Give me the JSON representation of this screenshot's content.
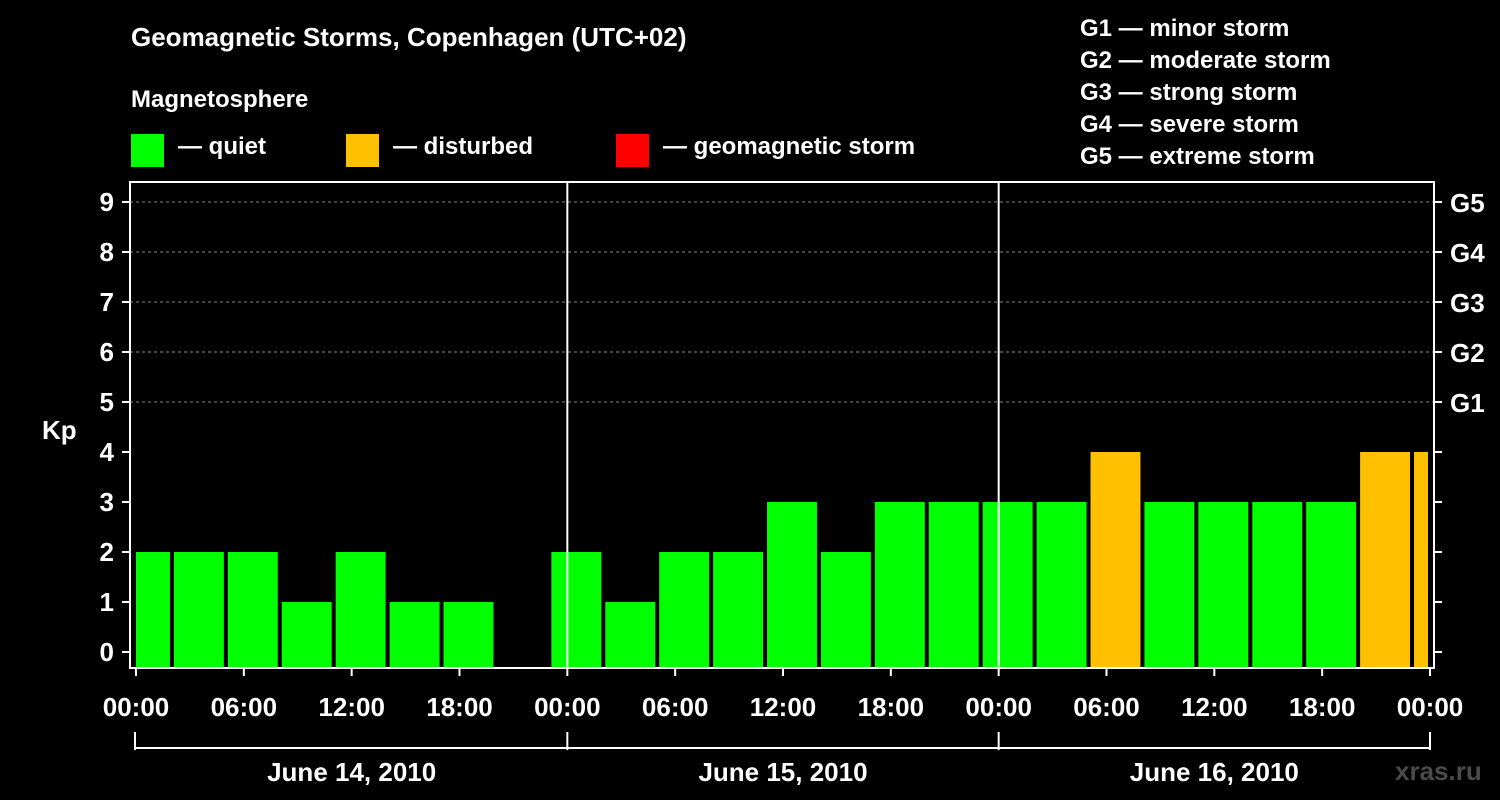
{
  "header": {
    "title": "Geomagnetic Storms, Copenhagen (UTC+02)",
    "subtitle": "Magnetosphere"
  },
  "legend": [
    {
      "label": "— quiet",
      "color": "#00ff00"
    },
    {
      "label": "— disturbed",
      "color": "#ffc000"
    },
    {
      "label": "— geomagnetic storm",
      "color": "#ff0000"
    }
  ],
  "storm_scale": [
    "G1 — minor storm",
    "G2 — moderate storm",
    "G3 — strong storm",
    "G4 — severe storm",
    "G5 — extreme storm"
  ],
  "watermark": "xras.ru",
  "chart_data": {
    "type": "bar",
    "title": "Geomagnetic Storms, Copenhagen (UTC+02)",
    "ylabel": "Kp",
    "ylim": [
      0,
      9
    ],
    "yticks": [
      0,
      1,
      2,
      3,
      4,
      5,
      6,
      7,
      8,
      9
    ],
    "right_axis_labels": [
      {
        "kp": 5,
        "label": "G1"
      },
      {
        "kp": 6,
        "label": "G2"
      },
      {
        "kp": 7,
        "label": "G3"
      },
      {
        "kp": 8,
        "label": "G4"
      },
      {
        "kp": 9,
        "label": "G5"
      }
    ],
    "x_range_hours": [
      0,
      72
    ],
    "x_tick_labels": [
      {
        "hour": 0,
        "label": "00:00"
      },
      {
        "hour": 6,
        "label": "06:00"
      },
      {
        "hour": 12,
        "label": "12:00"
      },
      {
        "hour": 18,
        "label": "18:00"
      },
      {
        "hour": 24,
        "label": "00:00"
      },
      {
        "hour": 30,
        "label": "06:00"
      },
      {
        "hour": 36,
        "label": "12:00"
      },
      {
        "hour": 42,
        "label": "18:00"
      },
      {
        "hour": 48,
        "label": "00:00"
      },
      {
        "hour": 54,
        "label": "06:00"
      },
      {
        "hour": 60,
        "label": "12:00"
      },
      {
        "hour": 66,
        "label": "18:00"
      },
      {
        "hour": 72,
        "label": "00:00"
      }
    ],
    "days": [
      "June 14, 2010",
      "June 15, 2010",
      "June 16, 2010"
    ],
    "bar_interval_hours": 3,
    "first_bar_start_hour": -1,
    "series": [
      {
        "name": "Kp",
        "values": [
          2,
          2,
          2,
          1,
          2,
          1,
          1,
          0,
          2,
          1,
          2,
          2,
          3,
          2,
          3,
          3,
          3,
          3,
          4,
          3,
          3,
          3,
          3,
          4,
          4
        ],
        "levels": [
          "quiet",
          "quiet",
          "quiet",
          "quiet",
          "quiet",
          "quiet",
          "quiet",
          "quiet",
          "quiet",
          "quiet",
          "quiet",
          "quiet",
          "quiet",
          "quiet",
          "quiet",
          "quiet",
          "quiet",
          "quiet",
          "disturbed",
          "quiet",
          "quiet",
          "quiet",
          "quiet",
          "disturbed",
          "disturbed"
        ]
      }
    ],
    "level_colors": {
      "quiet": "#00ff00",
      "disturbed": "#ffc000",
      "storm": "#ff0000"
    }
  }
}
